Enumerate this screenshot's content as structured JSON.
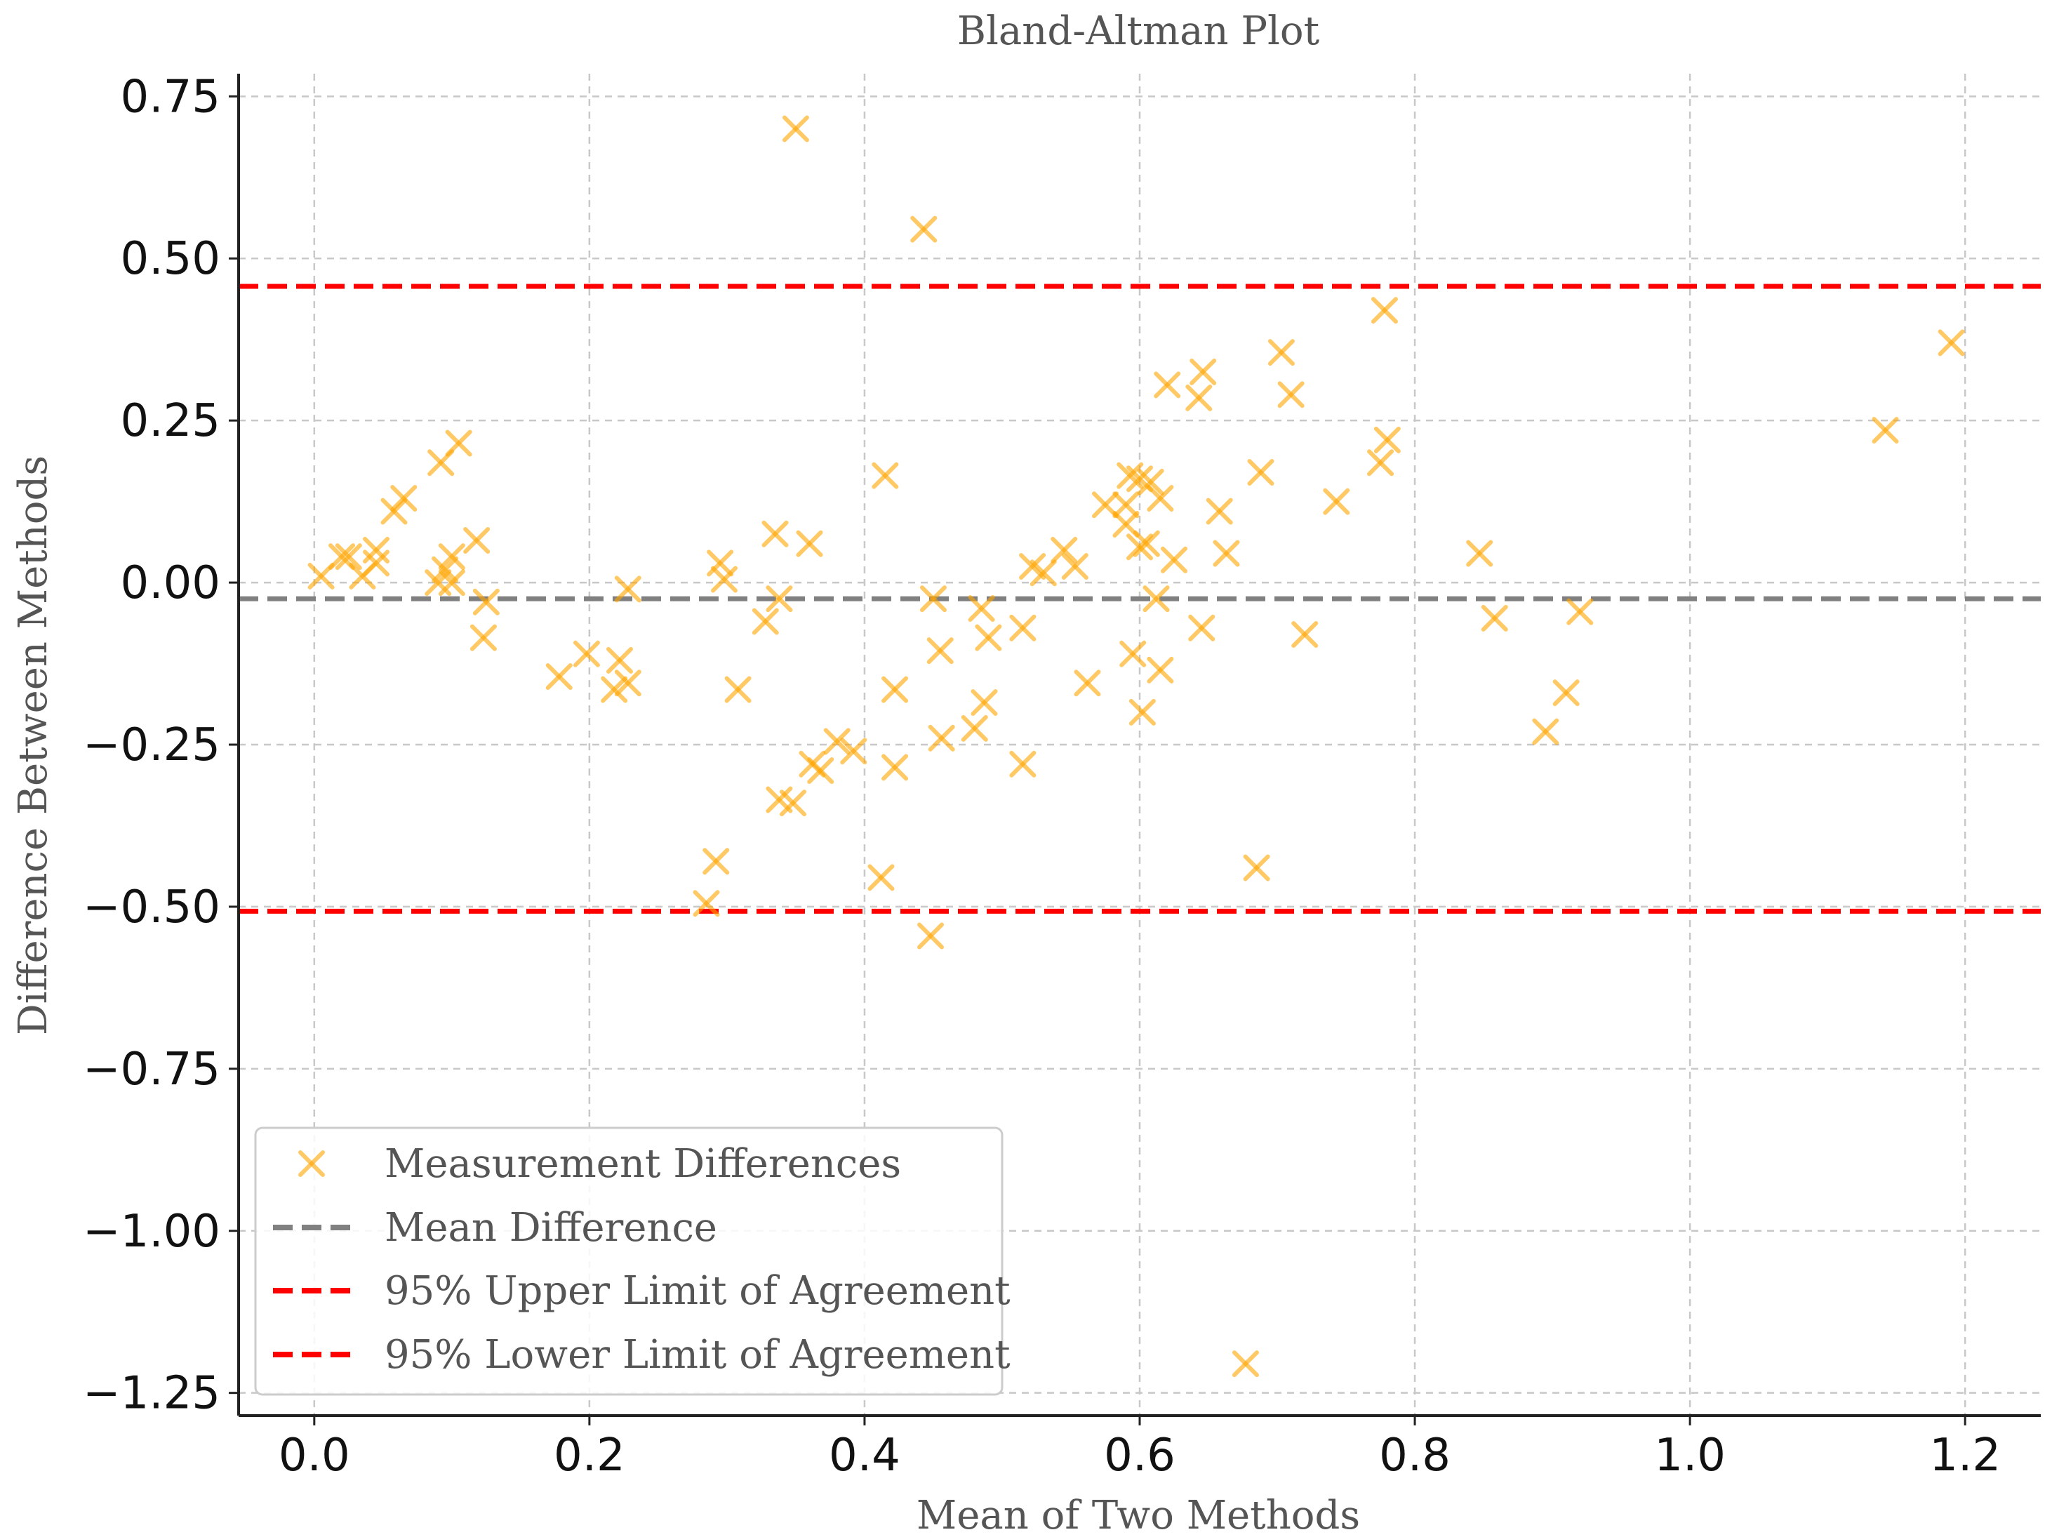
{
  "chart_data": {
    "type": "scatter",
    "title": "Bland-Altman Plot",
    "xlabel": "Mean of Two Methods",
    "ylabel": "Difference Between Methods",
    "xlim": [
      -0.055,
      1.255
    ],
    "ylim": [
      -1.285,
      0.785
    ],
    "grid": true,
    "x_ticks": [
      0.0,
      0.2,
      0.4,
      0.6,
      0.8,
      1.0,
      1.2
    ],
    "x_tick_labels": [
      "0.0",
      "0.2",
      "0.4",
      "0.6",
      "0.8",
      "1.0",
      "1.2"
    ],
    "y_ticks": [
      0.75,
      0.5,
      0.25,
      0.0,
      -0.25,
      -0.5,
      -0.75,
      -1.0,
      -1.25
    ],
    "y_tick_labels": [
      "0.75",
      "0.50",
      "0.25",
      "0.00",
      "−0.25",
      "−0.50",
      "−0.75",
      "−1.00",
      "−1.25"
    ],
    "reference_lines": [
      {
        "name": "Mean Difference",
        "value": -0.025,
        "color": "#808080"
      },
      {
        "name": "95% Upper Limit of Agreement",
        "value": 0.457,
        "color": "#ff0000"
      },
      {
        "name": "95% Lower Limit of Agreement",
        "value": -0.507,
        "color": "#ff0000"
      }
    ],
    "legend": {
      "position": "lower-left",
      "entries": [
        {
          "label": "Measurement Differences",
          "kind": "marker",
          "color": "#ffa500"
        },
        {
          "label": "Mean Difference",
          "kind": "line",
          "color": "#808080"
        },
        {
          "label": "95% Upper Limit of Agreement",
          "kind": "line",
          "color": "#ff0000"
        },
        {
          "label": "95% Lower Limit of Agreement",
          "kind": "line",
          "color": "#ff0000"
        }
      ]
    },
    "series": [
      {
        "name": "Measurement Differences",
        "marker": "x",
        "color": "#ffa500",
        "points": [
          [
            0.005,
            0.01
          ],
          [
            0.02,
            0.04
          ],
          [
            0.025,
            0.04
          ],
          [
            0.035,
            0.01
          ],
          [
            0.045,
            0.03
          ],
          [
            0.045,
            0.05
          ],
          [
            0.058,
            0.11
          ],
          [
            0.065,
            0.13
          ],
          [
            0.092,
            0.185
          ],
          [
            0.105,
            0.215
          ],
          [
            0.09,
            0.0
          ],
          [
            0.095,
            0.02
          ],
          [
            0.1,
            0.04
          ],
          [
            0.1,
            0.0
          ],
          [
            0.118,
            0.065
          ],
          [
            0.125,
            -0.03
          ],
          [
            0.123,
            -0.085
          ],
          [
            0.178,
            -0.145
          ],
          [
            0.198,
            -0.11
          ],
          [
            0.218,
            -0.165
          ],
          [
            0.222,
            -0.12
          ],
          [
            0.228,
            -0.155
          ],
          [
            0.228,
            -0.01
          ],
          [
            0.285,
            -0.495
          ],
          [
            0.292,
            -0.43
          ],
          [
            0.295,
            0.03
          ],
          [
            0.298,
            0.005
          ],
          [
            0.308,
            -0.165
          ],
          [
            0.328,
            -0.06
          ],
          [
            0.335,
            0.075
          ],
          [
            0.338,
            -0.025
          ],
          [
            0.338,
            -0.335
          ],
          [
            0.348,
            -0.34
          ],
          [
            0.35,
            0.7
          ],
          [
            0.36,
            0.06
          ],
          [
            0.362,
            -0.28
          ],
          [
            0.368,
            -0.29
          ],
          [
            0.38,
            -0.245
          ],
          [
            0.392,
            -0.26
          ],
          [
            0.412,
            -0.455
          ],
          [
            0.415,
            0.165
          ],
          [
            0.422,
            -0.165
          ],
          [
            0.422,
            -0.285
          ],
          [
            0.443,
            0.545
          ],
          [
            0.448,
            -0.545
          ],
          [
            0.45,
            -0.025
          ],
          [
            0.455,
            -0.105
          ],
          [
            0.456,
            -0.24
          ],
          [
            0.48,
            -0.225
          ],
          [
            0.485,
            -0.04
          ],
          [
            0.487,
            -0.185
          ],
          [
            0.49,
            -0.085
          ],
          [
            0.515,
            -0.07
          ],
          [
            0.515,
            -0.28
          ],
          [
            0.522,
            0.025
          ],
          [
            0.53,
            0.015
          ],
          [
            0.545,
            0.05
          ],
          [
            0.553,
            0.025
          ],
          [
            0.562,
            -0.155
          ],
          [
            0.575,
            0.12
          ],
          [
            0.59,
            0.09
          ],
          [
            0.59,
            0.12
          ],
          [
            0.593,
            0.165
          ],
          [
            0.595,
            -0.11
          ],
          [
            0.6,
            0.16
          ],
          [
            0.6,
            0.055
          ],
          [
            0.602,
            -0.2
          ],
          [
            0.605,
            0.06
          ],
          [
            0.608,
            0.155
          ],
          [
            0.612,
            -0.025
          ],
          [
            0.615,
            0.13
          ],
          [
            0.615,
            -0.135
          ],
          [
            0.62,
            0.305
          ],
          [
            0.625,
            0.035
          ],
          [
            0.643,
            0.285
          ],
          [
            0.646,
            0.325
          ],
          [
            0.645,
            -0.07
          ],
          [
            0.658,
            0.11
          ],
          [
            0.663,
            0.045
          ],
          [
            0.677,
            -1.205
          ],
          [
            0.685,
            -0.44
          ],
          [
            0.688,
            0.17
          ],
          [
            0.703,
            0.355
          ],
          [
            0.71,
            0.29
          ],
          [
            0.72,
            -0.08
          ],
          [
            0.743,
            0.125
          ],
          [
            0.775,
            0.185
          ],
          [
            0.778,
            0.42
          ],
          [
            0.78,
            0.22
          ],
          [
            0.847,
            0.045
          ],
          [
            0.858,
            -0.055
          ],
          [
            0.895,
            -0.23
          ],
          [
            0.91,
            -0.17
          ],
          [
            0.92,
            -0.045
          ],
          [
            1.142,
            0.235
          ],
          [
            1.19,
            0.37
          ]
        ]
      }
    ]
  }
}
